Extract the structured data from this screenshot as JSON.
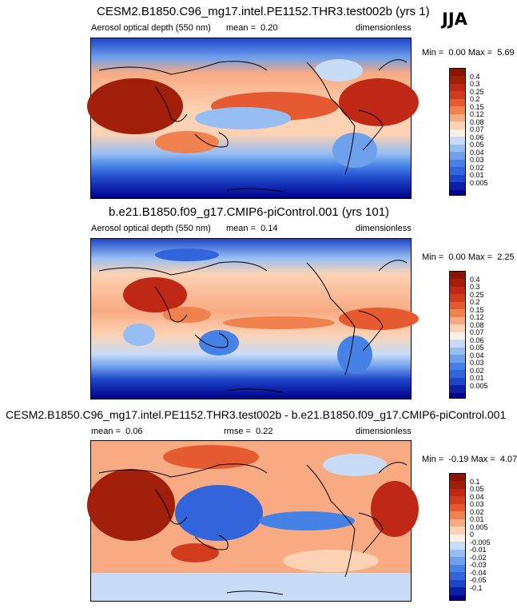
{
  "season": "JJA",
  "colors": {
    "abs_scale": [
      "#00008b",
      "#0a1ea8",
      "#1e46c8",
      "#3264dc",
      "#4682e6",
      "#6ea0ec",
      "#96bef2",
      "#c8dcf8",
      "#faf0e6",
      "#fcd2b4",
      "#f8aa82",
      "#f08250",
      "#e65a32",
      "#d23c1e",
      "#be2814",
      "#a01e0a",
      "#8c1404"
    ],
    "diff_scale": [
      "#00008b",
      "#0a1ea8",
      "#1e46c8",
      "#3264dc",
      "#4682e6",
      "#6ea0ec",
      "#96bef2",
      "#c8dcf8",
      "#faf0e6",
      "#fcd2b4",
      "#f8aa82",
      "#f08250",
      "#e65a32",
      "#d23c1e",
      "#be2814",
      "#a01e0a",
      "#8c1404"
    ]
  },
  "panels": [
    {
      "id": "test",
      "title": "CESM2.B1850.C96_mg17.intel.PE1152.THR3.test002b (yrs 1)",
      "variable": "Aerosol optical depth (550 nm)",
      "stat_label": "mean =",
      "stat_value": "0.20",
      "units": "dimensionless",
      "min_label": "Min =",
      "min_value": "0.00",
      "max_label": "Max =",
      "max_value": "5.69",
      "levels": [
        "0.4",
        "0.3",
        "0.25",
        "0.2",
        "0.15",
        "0.12",
        "0.08",
        "0.07",
        "0.06",
        "0.05",
        "0.04",
        "0.03",
        "0.02",
        "0.01",
        "0.005"
      ]
    },
    {
      "id": "control",
      "title": "b.e21.B1850.f09_g17.CMIP6-piControl.001 (yrs 101)",
      "variable": "Aerosol optical depth (550 nm)",
      "stat_label": "mean =",
      "stat_value": "0.14",
      "units": "dimensionless",
      "min_label": "Min =",
      "min_value": "0.00",
      "max_label": "Max =",
      "max_value": "2.25",
      "levels": [
        "0.4",
        "0.3",
        "0.25",
        "0.2",
        "0.15",
        "0.12",
        "0.08",
        "0.07",
        "0.06",
        "0.05",
        "0.04",
        "0.03",
        "0.02",
        "0.01",
        "0.005"
      ]
    },
    {
      "id": "diff",
      "title": "CESM2.B1850.C96_mg17.intel.PE1152.THR3.test002b - b.e21.B1850.f09_g17.CMIP6-piControl.001",
      "stat_label": "mean =",
      "stat_value": "0.06",
      "stat2_label": "rmse =",
      "stat2_value": "0.22",
      "units": "dimensionless",
      "min_label": "Min =",
      "min_value": "-0.19",
      "max_label": "Max =",
      "max_value": "4.07",
      "levels": [
        "0.1",
        "0.05",
        "0.04",
        "0.03",
        "0.02",
        "0.01",
        "0.005",
        "0",
        "-0.005",
        "-0.01",
        "-0.02",
        "-0.03",
        "-0.04",
        "-0.05",
        "-0.1"
      ]
    }
  ]
}
